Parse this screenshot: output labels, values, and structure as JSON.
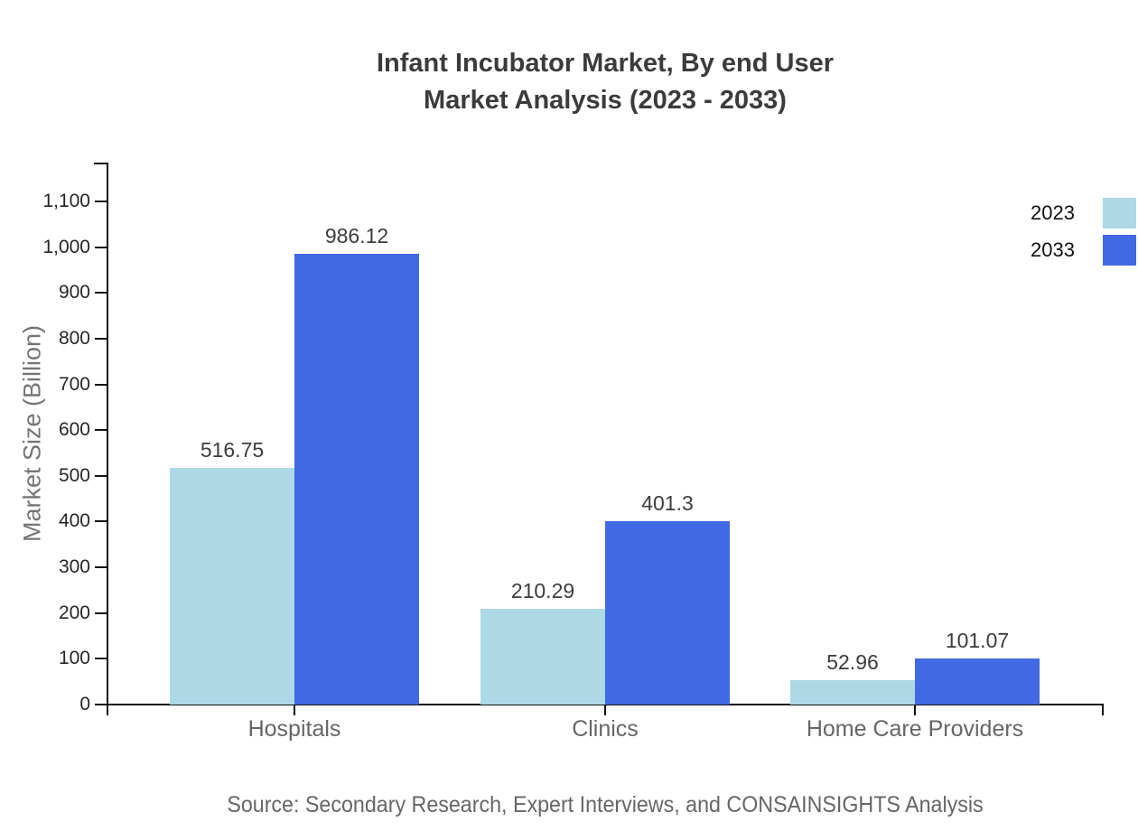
{
  "title": {
    "line1": "Infant Incubator Market, By end User",
    "line2": "Market Analysis (2023 - 2033)"
  },
  "source": "Source: Secondary Research, Expert Interviews, and CONSAINSIGHTS Analysis",
  "legend": {
    "items": [
      {
        "label": "2023",
        "color": "#ADD8E6"
      },
      {
        "label": "2033",
        "color": "#4169E1"
      }
    ]
  },
  "colors": {
    "series_2023": "#ADD8E6",
    "series_2033": "#4169E1",
    "axis": "#141414",
    "title_text": "#3b3b3b",
    "value_label_text": "#3d3d3d",
    "category_text": "#666666",
    "tick_text": "#262626",
    "axis_title_text": "#757575",
    "source_text": "#666666"
  },
  "chart_data": {
    "type": "bar",
    "title": "Infant Incubator Market, By end User Market Analysis (2023 - 2033)",
    "categories": [
      "Hospitals",
      "Clinics",
      "Home Care Providers"
    ],
    "series": [
      {
        "name": "2023",
        "color": "#ADD8E6",
        "values": [
          516.75,
          210.29,
          52.96
        ]
      },
      {
        "name": "2033",
        "color": "#4169E1",
        "values": [
          986.12,
          401.3,
          101.07
        ]
      }
    ],
    "xlabel": "",
    "ylabel": "Market Size (Billion)",
    "ylim": [
      0,
      1100
    ],
    "ytick_step": 100,
    "ytick_labels": [
      "0",
      "100",
      "200",
      "300",
      "400",
      "500",
      "600",
      "700",
      "800",
      "900",
      "1,000",
      "1,100"
    ],
    "grid": false,
    "legend_position": "top-right",
    "value_labels": true
  }
}
